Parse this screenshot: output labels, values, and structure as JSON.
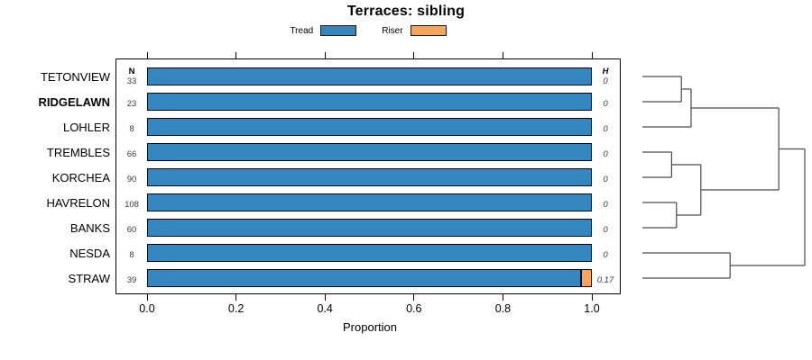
{
  "title": "Terraces: sibling",
  "legend": {
    "items": [
      {
        "label": "Tread",
        "color": "#3585BE"
      },
      {
        "label": "Riser",
        "color": "#F9A65C"
      }
    ]
  },
  "columns": {
    "n_header": "N",
    "h_header": "H"
  },
  "axis": {
    "xlabel": "Proportion",
    "ticks": [
      "0.0",
      "0.2",
      "0.4",
      "0.6",
      "0.8",
      "1.0"
    ]
  },
  "chart_data": {
    "type": "bar",
    "orientation": "horizontal",
    "stacked": true,
    "title": "Terraces: sibling",
    "xlabel": "Proportion",
    "xlim": [
      0.0,
      1.0
    ],
    "categories": [
      "TETONVIEW",
      "RIDGELAWN",
      "LOHLER",
      "TREMBLES",
      "KORCHEA",
      "HAVRELON",
      "BANKS",
      "NESDA",
      "STRAW"
    ],
    "bold_category": "RIDGELAWN",
    "n_values": [
      "33",
      "23",
      "8",
      "66",
      "90",
      "108",
      "60",
      "8",
      "39"
    ],
    "h_values": [
      "0",
      "0",
      "0",
      "0",
      "0",
      "0",
      "0",
      "0",
      "0.17"
    ],
    "series": [
      {
        "name": "Tread",
        "color": "#3585BE",
        "values": [
          1,
          1,
          1,
          1,
          1,
          1,
          1,
          1,
          0.975
        ]
      },
      {
        "name": "Riser",
        "color": "#F9A65C",
        "values": [
          0,
          0,
          0,
          0,
          0,
          0,
          0,
          0,
          0.025
        ]
      }
    ],
    "dendrogram": {
      "line_color": "#4a4a4a",
      "tree": {
        "height": 1.0,
        "children": [
          {
            "height": 0.84,
            "children": [
              {
                "height": 0.3,
                "children": [
                  {
                    "height": 0.24,
                    "children": [
                      {
                        "leaf": "TETONVIEW"
                      },
                      {
                        "leaf": "RIDGELAWN"
                      }
                    ]
                  },
                  {
                    "leaf": "LOHLER"
                  }
                ]
              },
              {
                "height": 0.36,
                "children": [
                  {
                    "height": 0.18,
                    "children": [
                      {
                        "leaf": "TREMBLES"
                      },
                      {
                        "leaf": "KORCHEA"
                      }
                    ]
                  },
                  {
                    "height": 0.21,
                    "children": [
                      {
                        "leaf": "HAVRELON"
                      },
                      {
                        "leaf": "BANKS"
                      }
                    ]
                  }
                ]
              }
            ]
          },
          {
            "height": 0.54,
            "children": [
              {
                "leaf": "NESDA"
              },
              {
                "leaf": "STRAW"
              }
            ]
          }
        ]
      }
    }
  }
}
